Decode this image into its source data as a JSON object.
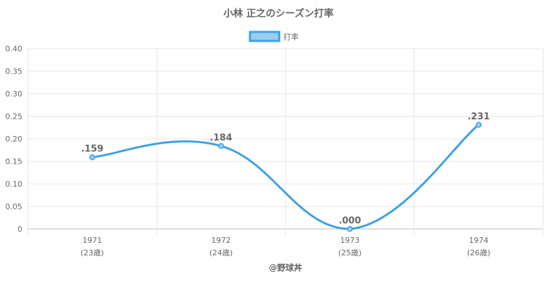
{
  "chart_data": {
    "type": "line",
    "title": "小林 正之のシーズン打率",
    "legend": {
      "label": "打率",
      "placement": "top"
    },
    "categories": [
      "1971",
      "1972",
      "1973",
      "1974"
    ],
    "category_sublabels": [
      "(23歳)",
      "(24歳)",
      "(25歳)",
      "(26歳)"
    ],
    "series": [
      {
        "name": "打率",
        "values": [
          0.159,
          0.184,
          0.0,
          0.231
        ],
        "data_labels": [
          ".159",
          ".184",
          ".000",
          ".231"
        ]
      }
    ],
    "ylim": [
      0,
      0.4
    ],
    "y_ticks": [
      0,
      0.05,
      0.1,
      0.15,
      0.2,
      0.25,
      0.3,
      0.35,
      0.4
    ],
    "y_tick_labels": [
      "0",
      "0.05",
      "0.10",
      "0.15",
      "0.20",
      "0.25",
      "0.30",
      "0.35",
      "0.40"
    ],
    "grid": true,
    "colors": {
      "line": "#3ea1e5",
      "fill": "#99cdf2",
      "text": "#666666"
    }
  },
  "footer": {
    "credit": "@野球丼"
  }
}
